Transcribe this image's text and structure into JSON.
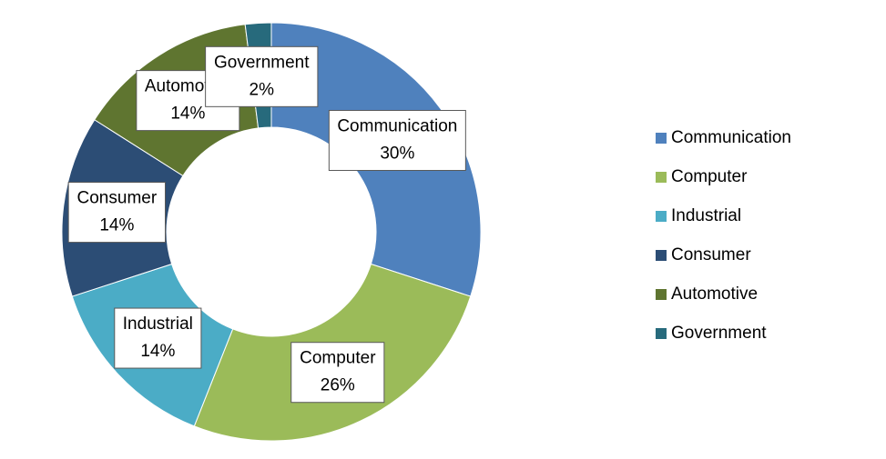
{
  "chart_data": {
    "type": "donut",
    "categories": [
      "Communication",
      "Computer",
      "Industrial",
      "Consumer",
      "Automotive",
      "Government"
    ],
    "values": [
      30,
      26,
      14,
      14,
      14,
      2
    ],
    "value_labels": [
      "30%",
      "26%",
      "14%",
      "14%",
      "14%",
      "2%"
    ],
    "colors": [
      "#4f81bd",
      "#9bbb59",
      "#4bacc6",
      "#2c4d75",
      "#5f7530",
      "#276a7c"
    ],
    "legend": "right"
  }
}
